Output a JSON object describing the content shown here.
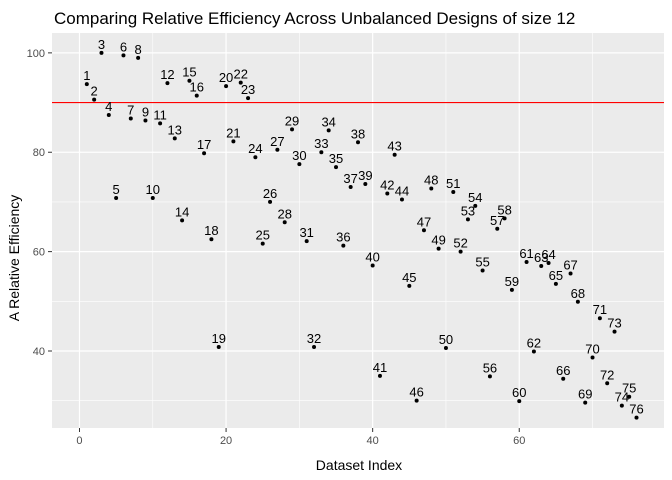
{
  "chart_data": {
    "type": "scatter",
    "title": "Comparing Relative Efficiency Across Unbalanced Designs of size 12",
    "xlabel": "Dataset Index",
    "ylabel": "A Relative Efficiency",
    "xlim": [
      -3.75,
      79.75
    ],
    "ylim": [
      24.5,
      104
    ],
    "x_ticks": [
      0,
      20,
      40,
      60
    ],
    "y_ticks": [
      40,
      60,
      80,
      100
    ],
    "grid": true,
    "reference_line": {
      "y": 90,
      "color": "#ff0000"
    },
    "colors": {
      "panel": "#ebebeb",
      "grid": "#ffffff",
      "points": "#000000"
    },
    "points": [
      {
        "x": 1,
        "y": 93.7,
        "label": "1"
      },
      {
        "x": 2,
        "y": 90.6,
        "label": "2"
      },
      {
        "x": 3,
        "y": 100.0,
        "label": "3"
      },
      {
        "x": 4,
        "y": 87.5,
        "label": "4"
      },
      {
        "x": 5,
        "y": 70.8,
        "label": "5"
      },
      {
        "x": 6,
        "y": 99.5,
        "label": "6"
      },
      {
        "x": 7,
        "y": 86.8,
        "label": "7"
      },
      {
        "x": 8,
        "y": 99.0,
        "label": "8"
      },
      {
        "x": 9,
        "y": 86.4,
        "label": "9"
      },
      {
        "x": 10,
        "y": 70.8,
        "label": "10"
      },
      {
        "x": 11,
        "y": 85.8,
        "label": "11"
      },
      {
        "x": 12,
        "y": 93.9,
        "label": "12"
      },
      {
        "x": 13,
        "y": 82.8,
        "label": "13"
      },
      {
        "x": 14,
        "y": 66.3,
        "label": "14"
      },
      {
        "x": 15,
        "y": 94.4,
        "label": "15"
      },
      {
        "x": 16,
        "y": 91.4,
        "label": "16"
      },
      {
        "x": 17,
        "y": 79.8,
        "label": "17"
      },
      {
        "x": 18,
        "y": 62.5,
        "label": "18"
      },
      {
        "x": 19,
        "y": 40.8,
        "label": "19"
      },
      {
        "x": 20,
        "y": 93.3,
        "label": "20"
      },
      {
        "x": 21,
        "y": 82.2,
        "label": "21"
      },
      {
        "x": 22,
        "y": 94.0,
        "label": "22"
      },
      {
        "x": 23,
        "y": 90.9,
        "label": "23"
      },
      {
        "x": 24,
        "y": 79.0,
        "label": "24"
      },
      {
        "x": 25,
        "y": 61.6,
        "label": "25"
      },
      {
        "x": 26,
        "y": 70.0,
        "label": "26"
      },
      {
        "x": 27,
        "y": 80.5,
        "label": "27"
      },
      {
        "x": 28,
        "y": 65.9,
        "label": "28"
      },
      {
        "x": 29,
        "y": 84.6,
        "label": "29"
      },
      {
        "x": 30,
        "y": 77.6,
        "label": "30"
      },
      {
        "x": 31,
        "y": 62.1,
        "label": "31"
      },
      {
        "x": 32,
        "y": 40.8,
        "label": "32"
      },
      {
        "x": 33,
        "y": 80.0,
        "label": "33"
      },
      {
        "x": 34,
        "y": 84.4,
        "label": "34"
      },
      {
        "x": 35,
        "y": 77.0,
        "label": "35"
      },
      {
        "x": 36,
        "y": 61.2,
        "label": "36"
      },
      {
        "x": 37,
        "y": 73.0,
        "label": "37"
      },
      {
        "x": 38,
        "y": 82.0,
        "label": "38"
      },
      {
        "x": 39,
        "y": 73.6,
        "label": "39"
      },
      {
        "x": 40,
        "y": 57.2,
        "label": "40"
      },
      {
        "x": 41,
        "y": 35.0,
        "label": "41"
      },
      {
        "x": 42,
        "y": 71.7,
        "label": "42"
      },
      {
        "x": 43,
        "y": 79.5,
        "label": "43"
      },
      {
        "x": 44,
        "y": 70.5,
        "label": "44"
      },
      {
        "x": 45,
        "y": 53.1,
        "label": "45"
      },
      {
        "x": 46,
        "y": 30.0,
        "label": "46"
      },
      {
        "x": 47,
        "y": 64.3,
        "label": "47"
      },
      {
        "x": 48,
        "y": 72.7,
        "label": "48"
      },
      {
        "x": 49,
        "y": 60.6,
        "label": "49"
      },
      {
        "x": 50,
        "y": 40.6,
        "label": "50"
      },
      {
        "x": 51,
        "y": 72.0,
        "label": "51"
      },
      {
        "x": 52,
        "y": 60.0,
        "label": "52"
      },
      {
        "x": 53,
        "y": 66.5,
        "label": "53"
      },
      {
        "x": 54,
        "y": 69.2,
        "label": "54"
      },
      {
        "x": 55,
        "y": 56.2,
        "label": "55"
      },
      {
        "x": 56,
        "y": 34.9,
        "label": "56"
      },
      {
        "x": 57,
        "y": 64.6,
        "label": "57"
      },
      {
        "x": 58,
        "y": 66.7,
        "label": "58"
      },
      {
        "x": 59,
        "y": 52.3,
        "label": "59"
      },
      {
        "x": 60,
        "y": 29.9,
        "label": "60"
      },
      {
        "x": 61,
        "y": 57.9,
        "label": "61"
      },
      {
        "x": 62,
        "y": 39.9,
        "label": "62"
      },
      {
        "x": 63,
        "y": 57.1,
        "label": "63"
      },
      {
        "x": 64,
        "y": 57.7,
        "label": "64"
      },
      {
        "x": 65,
        "y": 53.5,
        "label": "65"
      },
      {
        "x": 66,
        "y": 34.4,
        "label": "66"
      },
      {
        "x": 67,
        "y": 55.6,
        "label": "67"
      },
      {
        "x": 68,
        "y": 49.9,
        "label": "68"
      },
      {
        "x": 69,
        "y": 29.6,
        "label": "69"
      },
      {
        "x": 70,
        "y": 38.7,
        "label": "70"
      },
      {
        "x": 71,
        "y": 46.6,
        "label": "71"
      },
      {
        "x": 72,
        "y": 33.5,
        "label": "72"
      },
      {
        "x": 73,
        "y": 43.9,
        "label": "73"
      },
      {
        "x": 74,
        "y": 29.0,
        "label": "74"
      },
      {
        "x": 75,
        "y": 30.8,
        "label": "75"
      },
      {
        "x": 76,
        "y": 26.6,
        "label": "76"
      }
    ]
  }
}
